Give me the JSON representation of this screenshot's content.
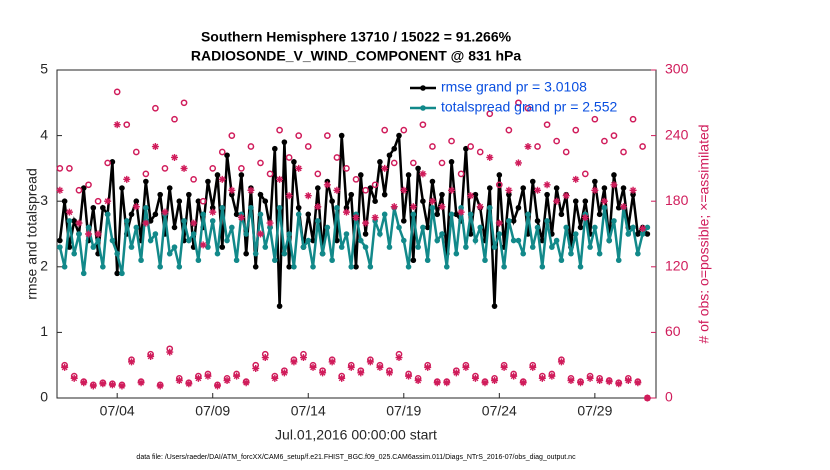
{
  "chart_data": {
    "type": "line",
    "title": "Southern Hemisphere 13710 / 15022 = 91.266%",
    "subtitle": "RADIOSONDE_V_WIND_COMPONENT @ 831 hPa",
    "x_label": "Jul.01,2016 00:00:00 start",
    "y_label": "rmse and totalspread",
    "y2_label": "# of obs: o=possible; ×=assimilated",
    "footnote": "data file: /Users/raeder/DAI/ATM_forcXX/CAM6_setup/f.e21.FHIST_BGC.f09_025.CAM6assim.011/Diags_NTrS_2016-07/obs_diag_output.nc",
    "xlim": [
      -0.15,
      31.2
    ],
    "xticks": [
      {
        "value": 3,
        "label": "07/04"
      },
      {
        "value": 8,
        "label": "07/09"
      },
      {
        "value": 13,
        "label": "07/14"
      },
      {
        "value": 18,
        "label": "07/19"
      },
      {
        "value": 23,
        "label": "07/24"
      },
      {
        "value": 28,
        "label": "07/29"
      }
    ],
    "ylim": [
      0,
      5
    ],
    "yticks": [
      0,
      1,
      2,
      3,
      4,
      5
    ],
    "y2lim": [
      0,
      300
    ],
    "y2ticks": [
      0,
      60,
      120,
      180,
      240,
      300
    ],
    "legend": "upper right",
    "x": [
      0,
      0.25,
      0.5,
      0.75,
      1,
      1.25,
      1.5,
      1.75,
      2,
      2.25,
      2.5,
      2.75,
      3,
      3.25,
      3.5,
      3.75,
      4,
      4.25,
      4.5,
      4.75,
      5,
      5.25,
      5.5,
      5.75,
      6,
      6.25,
      6.5,
      6.75,
      7,
      7.25,
      7.5,
      7.75,
      8,
      8.25,
      8.5,
      8.75,
      9,
      9.25,
      9.5,
      9.75,
      10,
      10.25,
      10.5,
      10.75,
      11,
      11.25,
      11.5,
      11.75,
      12,
      12.25,
      12.5,
      12.75,
      13,
      13.25,
      13.5,
      13.75,
      14,
      14.25,
      14.5,
      14.75,
      15,
      15.25,
      15.5,
      15.75,
      16,
      16.25,
      16.5,
      16.75,
      17,
      17.25,
      17.5,
      17.75,
      18,
      18.25,
      18.5,
      18.75,
      19,
      19.25,
      19.5,
      19.75,
      20,
      20.25,
      20.5,
      20.75,
      21,
      21.25,
      21.5,
      21.75,
      22,
      22.25,
      22.5,
      22.75,
      23,
      23.25,
      23.5,
      23.75,
      24,
      24.25,
      24.5,
      24.75,
      25,
      25.25,
      25.5,
      25.75,
      26,
      26.25,
      26.5,
      26.75,
      27,
      27.25,
      27.5,
      27.75,
      28,
      28.25,
      28.5,
      28.75,
      29,
      29.25,
      29.5,
      29.75,
      30,
      30.25,
      30.5,
      30.75
    ],
    "series": [
      {
        "name": "rmse grand pr = 3.0108",
        "color": "#000000",
        "marker": "dot",
        "values": [
          2.4,
          3.0,
          2.3,
          2.7,
          2.5,
          3.2,
          2.4,
          2.9,
          2.2,
          2.9,
          2.8,
          3.6,
          1.9,
          3.2,
          2.5,
          2.8,
          3.0,
          2.4,
          3.3,
          2.7,
          2.8,
          3.1,
          2.5,
          3.2,
          2.6,
          3.0,
          2.4,
          3.1,
          2.3,
          3.0,
          2.6,
          3.3,
          2.9,
          3.4,
          2.3,
          3.7,
          3.1,
          2.8,
          3.4,
          2.2,
          3.2,
          2.0,
          3.1,
          3.0,
          2.6,
          3.8,
          1.4,
          3.9,
          2.0,
          3.6,
          2.9,
          2.3,
          2.8,
          2.4,
          3.2,
          2.2,
          3.3,
          3.0,
          2.4,
          4.0,
          2.9,
          3.1,
          2.0,
          3.4,
          2.5,
          3.2,
          3.0,
          3.6,
          3.1,
          3.7,
          3.8,
          4.0,
          2.7,
          3.4,
          2.1,
          3.5,
          3.0,
          2.6,
          3.3,
          2.8,
          3.1,
          2.2,
          3.6,
          2.8,
          2.7,
          3.8,
          2.5,
          3.1,
          2.9,
          2.4,
          3.2,
          1.4,
          3.4,
          2.3,
          3.1,
          2.7,
          2.9,
          3.2,
          2.5,
          3.3,
          2.7,
          2.4,
          3.1,
          2.5,
          3.2,
          2.8,
          3.1,
          2.3,
          3.0,
          2.6,
          3.0,
          2.5,
          3.3,
          2.8,
          3.2,
          2.4,
          3.4,
          2.9,
          3.2,
          2.6,
          3.1,
          2.5,
          2.6,
          2.5
        ]
      },
      {
        "name": "totalspread grand pr = 2.552",
        "color": "#12898a",
        "marker": "dot",
        "values": [
          2.3,
          2.0,
          2.7,
          2.2,
          2.5,
          1.9,
          2.6,
          2.3,
          2.4,
          2.0,
          2.8,
          2.4,
          2.2,
          1.9,
          2.7,
          2.3,
          2.6,
          2.1,
          2.9,
          2.4,
          2.5,
          2.0,
          2.8,
          2.2,
          2.3,
          2.0,
          2.7,
          2.4,
          2.5,
          2.1,
          2.8,
          2.3,
          2.7,
          2.2,
          2.9,
          2.4,
          2.6,
          2.1,
          2.8,
          2.5,
          2.9,
          2.2,
          2.8,
          2.3,
          2.6,
          2.1,
          2.9,
          2.2,
          2.5,
          2.0,
          2.8,
          2.3,
          2.4,
          2.0,
          2.7,
          2.2,
          2.6,
          2.1,
          2.9,
          2.3,
          2.5,
          2.0,
          2.8,
          2.4,
          2.3,
          2.0,
          2.7,
          2.5,
          2.8,
          2.3,
          2.9,
          2.6,
          2.4,
          2.0,
          2.8,
          2.3,
          2.6,
          2.1,
          2.9,
          2.4,
          2.5,
          2.0,
          2.8,
          2.2,
          2.9,
          2.3,
          2.8,
          2.4,
          2.6,
          2.1,
          2.9,
          2.3,
          2.5,
          2.0,
          2.7,
          2.4,
          2.4,
          2.2,
          2.8,
          2.3,
          2.6,
          2.0,
          2.7,
          2.3,
          2.4,
          2.1,
          2.6,
          2.2,
          2.5,
          2.0,
          2.8,
          2.3,
          2.6,
          2.2,
          2.9,
          2.4,
          2.7,
          2.1,
          2.9,
          2.5,
          2.6,
          2.2,
          2.5,
          2.6
        ]
      },
      {
        "color": "#d01c5b",
        "marker": "circle",
        "axis": "y2",
        "values": [
          210,
          30,
          210,
          20,
          190,
          15,
          195,
          12,
          180,
          14,
          215,
          13,
          280,
          12,
          250,
          35,
          225,
          15,
          205,
          40,
          265,
          12,
          210,
          45,
          255,
          18,
          270,
          14,
          200,
          20,
          180,
          22,
          210,
          12,
          225,
          18,
          240,
          22,
          210,
          15,
          230,
          30,
          215,
          40,
          205,
          20,
          245,
          25,
          220,
          35,
          240,
          40,
          230,
          30,
          205,
          25,
          240,
          35,
          220,
          20,
          210,
          30,
          200,
          25,
          190,
          35,
          195,
          30,
          245,
          25,
          215,
          40,
          245,
          22,
          215,
          18,
          250,
          30,
          230,
          15,
          215,
          15,
          235,
          25,
          205,
          30,
          230,
          20,
          225,
          15,
          260,
          18,
          195,
          30,
          245,
          22,
          270,
          15,
          265,
          30,
          230,
          20,
          250,
          22,
          235,
          35,
          225,
          18,
          245,
          15,
          205,
          20,
          255,
          18,
          235,
          16,
          240,
          14,
          225,
          18,
          255,
          15,
          230,
          0
        ]
      },
      {
        "color": "#d01c5b",
        "marker": "star",
        "axis": "y2",
        "values": [
          190,
          28,
          170,
          18,
          160,
          14,
          150,
          11,
          150,
          13,
          180,
          12,
          250,
          11,
          200,
          33,
          175,
          14,
          160,
          38,
          230,
          11,
          170,
          42,
          220,
          16,
          210,
          13,
          160,
          18,
          140,
          20,
          170,
          11,
          200,
          16,
          190,
          20,
          165,
          14,
          190,
          27,
          150,
          37,
          160,
          18,
          200,
          23,
          185,
          33,
          210,
          37,
          185,
          28,
          175,
          23,
          195,
          33,
          190,
          18,
          170,
          28,
          165,
          23,
          160,
          33,
          165,
          28,
          210,
          23,
          175,
          37,
          190,
          20,
          175,
          16,
          205,
          28,
          180,
          14,
          175,
          14,
          190,
          23,
          170,
          28,
          185,
          18,
          175,
          14,
          220,
          16,
          160,
          28,
          190,
          20,
          215,
          14,
          230,
          28,
          190,
          18,
          195,
          20,
          180,
          33,
          185,
          16,
          200,
          14,
          165,
          18,
          190,
          16,
          180,
          15,
          195,
          13,
          175,
          16,
          190,
          14,
          155,
          0
        ]
      }
    ]
  }
}
